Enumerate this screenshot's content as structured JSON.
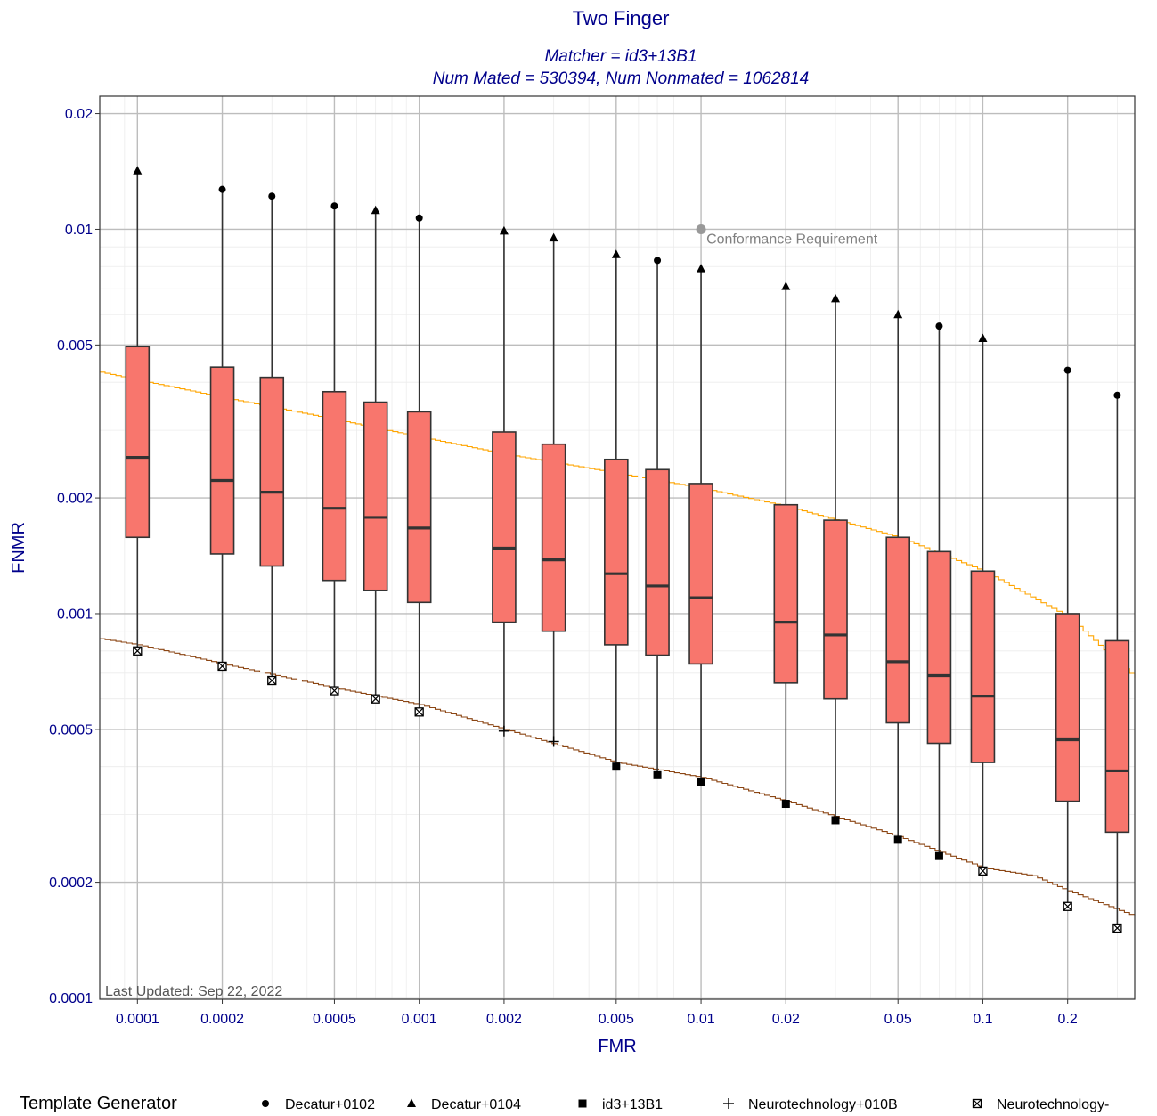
{
  "chart_data": {
    "type": "box",
    "title": "Two Finger",
    "subtitle_lines": [
      "Matcher = id3+13B1",
      "Num Mated = 530394, Num Nonmated = 1062814"
    ],
    "xlabel": "FMR",
    "ylabel": "FNMR",
    "x_scale": "log",
    "y_scale": "log",
    "xlim": [
      7.35e-05,
      0.346
    ],
    "ylim": [
      9.92e-05,
      0.0222
    ],
    "grid": true,
    "x_ticks": [
      {
        "value": 0.0001,
        "label": "0.0001"
      },
      {
        "value": 0.0002,
        "label": "0.0002"
      },
      {
        "value": 0.0005,
        "label": "0.0005"
      },
      {
        "value": 0.001,
        "label": "0.001"
      },
      {
        "value": 0.002,
        "label": "0.002"
      },
      {
        "value": 0.005,
        "label": "0.005"
      },
      {
        "value": 0.01,
        "label": "0.01"
      },
      {
        "value": 0.02,
        "label": "0.02"
      },
      {
        "value": 0.05,
        "label": "0.05"
      },
      {
        "value": 0.1,
        "label": "0.1"
      },
      {
        "value": 0.2,
        "label": "0.2"
      }
    ],
    "y_ticks": [
      {
        "value": 0.0001,
        "label": "0.0001"
      },
      {
        "value": 0.0002,
        "label": "0.0002"
      },
      {
        "value": 0.0005,
        "label": "0.0005"
      },
      {
        "value": 0.001,
        "label": "0.001"
      },
      {
        "value": 0.002,
        "label": "0.002"
      },
      {
        "value": 0.005,
        "label": "0.005"
      },
      {
        "value": 0.01,
        "label": "0.01"
      },
      {
        "value": 0.02,
        "label": "0.02"
      }
    ],
    "box_fill": "#F8766D",
    "boxes": [
      {
        "fmr": 0.0001,
        "min": 0.0008,
        "q1": 0.00158,
        "median": 0.00255,
        "q3": 0.00495,
        "max": 0.0142,
        "min_marker": "boxcross",
        "max_marker": "triangle"
      },
      {
        "fmr": 0.0002,
        "min": 0.00073,
        "q1": 0.00143,
        "median": 0.00222,
        "q3": 0.00438,
        "max": 0.0127,
        "min_marker": "boxcross",
        "max_marker": "circle"
      },
      {
        "fmr": 0.0003,
        "min": 0.00067,
        "q1": 0.00133,
        "median": 0.00207,
        "q3": 0.00412,
        "max": 0.0122,
        "min_marker": "boxcross",
        "max_marker": "circle"
      },
      {
        "fmr": 0.0005,
        "min": 0.00063,
        "q1": 0.00122,
        "median": 0.00188,
        "q3": 0.00378,
        "max": 0.0115,
        "min_marker": "boxcross",
        "max_marker": "circle"
      },
      {
        "fmr": 0.0007,
        "min": 0.0006,
        "q1": 0.00115,
        "median": 0.00178,
        "q3": 0.00355,
        "max": 0.0112,
        "min_marker": "boxcross",
        "max_marker": "triangle"
      },
      {
        "fmr": 0.001,
        "min": 0.000555,
        "q1": 0.00107,
        "median": 0.00167,
        "q3": 0.00335,
        "max": 0.0107,
        "min_marker": "boxcross",
        "max_marker": "circle"
      },
      {
        "fmr": 0.002,
        "min": 0.000495,
        "q1": 0.00095,
        "median": 0.00148,
        "q3": 0.00297,
        "max": 0.0099,
        "min_marker": "plus",
        "max_marker": "triangle"
      },
      {
        "fmr": 0.003,
        "min": 0.000465,
        "q1": 0.0009,
        "median": 0.00138,
        "q3": 0.00276,
        "max": 0.0095,
        "min_marker": "plus",
        "max_marker": "triangle"
      },
      {
        "fmr": 0.005,
        "min": 0.0004,
        "q1": 0.00083,
        "median": 0.00127,
        "q3": 0.00252,
        "max": 0.0086,
        "min_marker": "square",
        "max_marker": "triangle"
      },
      {
        "fmr": 0.007,
        "min": 0.00038,
        "q1": 0.00078,
        "median": 0.00118,
        "q3": 0.00237,
        "max": 0.0083,
        "min_marker": "square",
        "max_marker": "circle"
      },
      {
        "fmr": 0.01,
        "min": 0.000365,
        "q1": 0.00074,
        "median": 0.0011,
        "q3": 0.00218,
        "max": 0.0079,
        "min_marker": "square",
        "max_marker": "triangle"
      },
      {
        "fmr": 0.02,
        "min": 0.00032,
        "q1": 0.00066,
        "median": 0.00095,
        "q3": 0.00192,
        "max": 0.0071,
        "min_marker": "square",
        "max_marker": "triangle"
      },
      {
        "fmr": 0.03,
        "min": 0.00029,
        "q1": 0.0006,
        "median": 0.00088,
        "q3": 0.00175,
        "max": 0.0066,
        "min_marker": "square",
        "max_marker": "triangle"
      },
      {
        "fmr": 0.05,
        "min": 0.000258,
        "q1": 0.00052,
        "median": 0.00075,
        "q3": 0.00158,
        "max": 0.006,
        "min_marker": "square",
        "max_marker": "triangle"
      },
      {
        "fmr": 0.07,
        "min": 0.000234,
        "q1": 0.00046,
        "median": 0.00069,
        "q3": 0.00145,
        "max": 0.0056,
        "min_marker": "square",
        "max_marker": "circle"
      },
      {
        "fmr": 0.1,
        "min": 0.000214,
        "q1": 0.00041,
        "median": 0.00061,
        "q3": 0.00129,
        "max": 0.0052,
        "min_marker": "boxcross",
        "max_marker": "triangle"
      },
      {
        "fmr": 0.2,
        "min": 0.000173,
        "q1": 0.000325,
        "median": 0.00047,
        "q3": 0.001,
        "max": 0.0043,
        "min_marker": "boxcross",
        "max_marker": "circle"
      },
      {
        "fmr": 0.3,
        "min": 0.000152,
        "q1": 0.00027,
        "median": 0.00039,
        "q3": 0.00085,
        "max": 0.0037,
        "min_marker": "boxcross",
        "max_marker": "circle"
      }
    ],
    "curves": [
      {
        "color": "#FFA500",
        "points": [
          [
            7.35e-05,
            0.00425
          ],
          [
            0.0001,
            0.00405
          ],
          [
            0.0002,
            0.00365
          ],
          [
            0.0005,
            0.0032
          ],
          [
            0.001,
            0.00288
          ],
          [
            0.002,
            0.0026
          ],
          [
            0.005,
            0.00232
          ],
          [
            0.01,
            0.00212
          ],
          [
            0.02,
            0.0019
          ],
          [
            0.05,
            0.00158
          ],
          [
            0.1,
            0.00129
          ],
          [
            0.2,
            0.00098
          ],
          [
            0.346,
            0.00068
          ]
        ]
      },
      {
        "color": "#8B4513",
        "points": [
          [
            7.35e-05,
            0.00086
          ],
          [
            0.0001,
            0.00083
          ],
          [
            0.0002,
            0.00074
          ],
          [
            0.0005,
            0.00064
          ],
          [
            0.001,
            0.00058
          ],
          [
            0.002,
            0.0005
          ],
          [
            0.005,
            0.00041
          ],
          [
            0.01,
            0.000375
          ],
          [
            0.02,
            0.000325
          ],
          [
            0.05,
            0.000263
          ],
          [
            0.1,
            0.000218
          ],
          [
            0.15,
            0.000208
          ],
          [
            0.2,
            0.00019
          ],
          [
            0.346,
            0.000163
          ]
        ]
      }
    ],
    "annotations": [
      {
        "fmr": 0.01,
        "fnmr": 0.01,
        "text": "Conformance Requirement",
        "color": "#999999"
      }
    ],
    "footnote": "Last Updated: Sep 22, 2022",
    "legend": {
      "position": "bottom",
      "title": "Template Generator",
      "entries": [
        {
          "marker": "circle",
          "label": "Decatur+0102"
        },
        {
          "marker": "triangle",
          "label": "Decatur+0104"
        },
        {
          "marker": "square",
          "label": "id3+13B1"
        },
        {
          "marker": "plus",
          "label": "Neurotechnology+010B"
        },
        {
          "marker": "boxcross",
          "label": "Neurotechnology-"
        }
      ]
    }
  }
}
